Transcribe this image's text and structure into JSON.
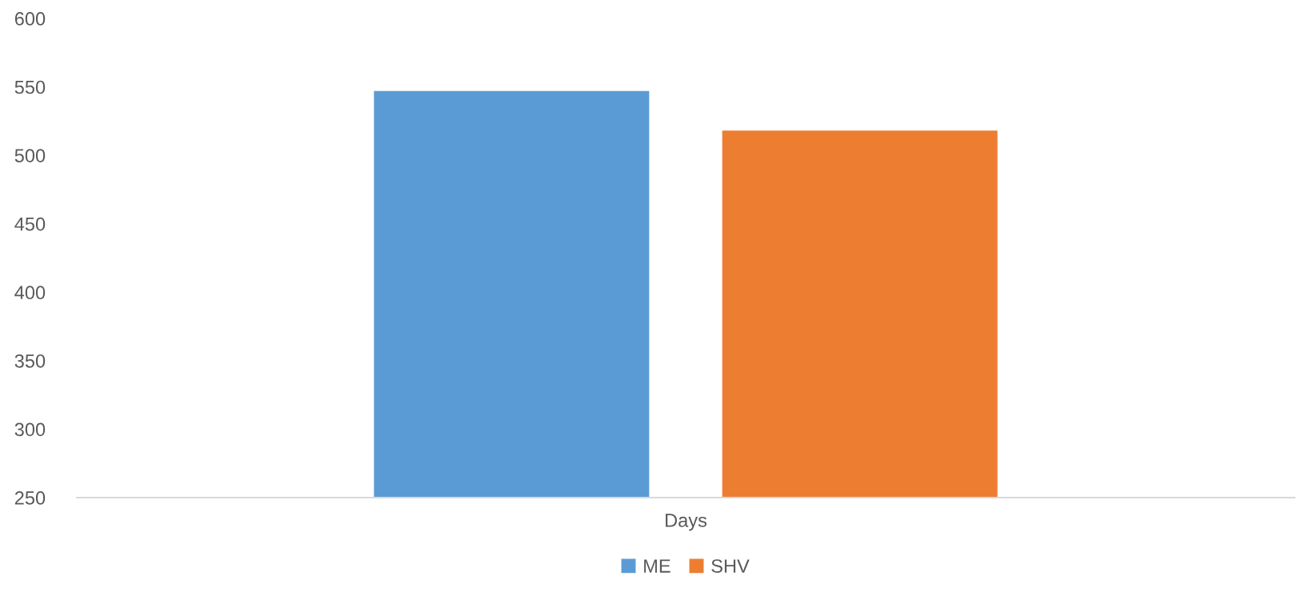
{
  "chart_data": {
    "type": "bar",
    "categories": [
      "Days"
    ],
    "series": [
      {
        "name": "ME",
        "color": "#5b9bd5",
        "values": [
          547
        ]
      },
      {
        "name": "SHV",
        "color": "#ed7d31",
        "values": [
          518
        ]
      }
    ],
    "ylim": [
      250,
      600
    ],
    "yticks": [
      250,
      300,
      350,
      400,
      450,
      500,
      550,
      600
    ],
    "grid": false,
    "legend": "bottom"
  }
}
